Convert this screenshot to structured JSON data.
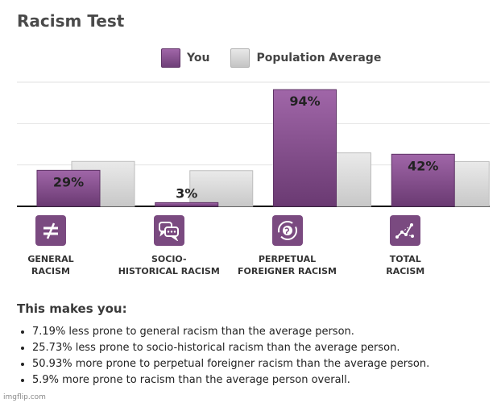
{
  "title": "Racism Test",
  "legend": {
    "you": "You",
    "avg": "Population Average"
  },
  "colors": {
    "you": "#8a5592",
    "avg": "#d8d8d8",
    "icon_bg": "#7a4a80"
  },
  "chart_data": {
    "type": "bar",
    "categories": [
      "GENERAL\nRACISM",
      "SOCIO-\nHISTORICAL RACISM",
      "PERPETUAL\nFOREIGNER RACISM",
      "TOTAL\nRACISM"
    ],
    "series": [
      {
        "name": "You",
        "values": [
          29,
          3,
          94,
          42
        ],
        "labels": [
          "29%",
          "3%",
          "94%",
          "42%"
        ]
      },
      {
        "name": "Population Average",
        "values": [
          36.19,
          28.73,
          43.07,
          36.1
        ]
      }
    ],
    "ylim": [
      0,
      100
    ],
    "grid": true,
    "legend": "top"
  },
  "icons": [
    "not-equal-icon",
    "speech-bubbles-icon",
    "globe-cycle-icon",
    "network-graph-icon"
  ],
  "summary": {
    "title": "This makes you:",
    "items": [
      "7.19% less prone to general racism than the average person.",
      "25.73% less prone to socio-historical racism than the average person.",
      "50.93% more prone to perpetual foreigner racism than the average person.",
      "5.9% more prone to racism than the average person overall."
    ]
  },
  "watermark": "imgflip.com"
}
